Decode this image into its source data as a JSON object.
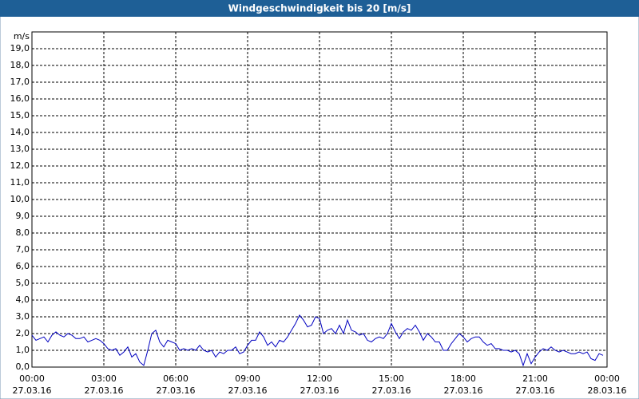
{
  "chart_data": {
    "type": "line",
    "title": "Windgeschwindigkeit bis 20 [m/s]",
    "y_label": "m/s",
    "x": [
      0,
      10,
      20,
      30,
      40,
      50,
      60,
      70,
      80,
      90,
      100,
      110,
      120,
      130,
      140,
      150,
      160,
      170,
      180,
      190,
      200,
      210,
      220,
      230,
      240,
      250,
      260,
      270,
      280,
      290,
      300,
      310,
      320,
      330,
      340,
      350,
      360,
      370,
      380,
      390,
      400,
      410,
      420,
      430,
      440,
      450,
      460,
      470,
      480,
      490,
      500,
      510,
      520,
      530,
      540,
      550,
      560,
      570,
      580,
      590,
      600,
      610,
      620,
      630,
      640,
      650,
      660,
      670,
      680,
      690,
      700,
      710,
      720,
      730,
      740,
      750,
      760,
      770,
      780,
      790,
      800,
      810,
      820,
      830,
      840,
      850,
      860,
      870,
      880,
      890,
      900,
      910,
      920,
      930,
      940,
      950,
      960,
      970,
      980,
      990,
      1000,
      1010,
      1020,
      1030,
      1040,
      1050,
      1060,
      1070,
      1080,
      1090,
      1100,
      1110,
      1120,
      1130,
      1140,
      1150,
      1160,
      1170,
      1180,
      1190,
      1200,
      1210,
      1220,
      1230,
      1240,
      1250,
      1260,
      1270,
      1280,
      1290,
      1300,
      1310,
      1320,
      1330,
      1340,
      1350,
      1360,
      1370,
      1380,
      1390,
      1400,
      1410,
      1420,
      1430
    ],
    "series": [
      {
        "name": "Windgeschwindigkeit",
        "color": "#0000c0",
        "values": [
          1.9,
          1.6,
          1.7,
          1.8,
          1.5,
          1.9,
          2.1,
          1.9,
          1.8,
          2.0,
          1.9,
          1.7,
          1.7,
          1.8,
          1.5,
          1.6,
          1.7,
          1.6,
          1.4,
          1.1,
          1.0,
          1.1,
          0.7,
          0.9,
          1.2,
          0.6,
          0.8,
          0.3,
          0.1,
          1.0,
          2.0,
          2.2,
          1.5,
          1.2,
          1.6,
          1.5,
          1.4,
          1.0,
          1.1,
          1.0,
          1.1,
          1.0,
          1.3,
          1.0,
          0.9,
          1.0,
          0.6,
          0.9,
          0.8,
          1.0,
          1.0,
          1.2,
          0.8,
          0.9,
          1.3,
          1.6,
          1.6,
          2.1,
          1.8,
          1.3,
          1.5,
          1.2,
          1.6,
          1.5,
          1.8,
          2.2,
          2.6,
          3.1,
          2.8,
          2.4,
          2.5,
          3.0,
          2.9,
          2.0,
          2.2,
          2.3,
          2.0,
          2.5,
          2.0,
          2.8,
          2.2,
          2.1,
          1.9,
          2.0,
          1.6,
          1.5,
          1.7,
          1.8,
          1.7,
          2.0,
          2.6,
          2.1,
          1.7,
          2.1,
          2.3,
          2.2,
          2.5,
          2.1,
          1.6,
          2.0,
          1.8,
          1.5,
          1.5,
          1.0,
          1.0,
          1.4,
          1.7,
          2.0,
          1.8,
          1.5,
          1.7,
          1.8,
          1.8,
          1.5,
          1.3,
          1.4,
          1.1,
          1.1,
          1.0,
          1.0,
          0.9,
          1.0,
          0.8,
          0.1,
          0.8,
          0.2,
          0.6,
          0.9,
          1.1,
          1.0,
          1.2,
          1.0,
          0.9,
          1.0,
          0.9,
          0.8,
          0.8,
          0.9,
          0.8,
          0.9,
          0.5,
          0.4,
          0.8,
          0.7
        ]
      }
    ],
    "xlim": [
      0,
      1440
    ],
    "xticks": [
      {
        "value": 0,
        "label": "00:00"
      },
      {
        "value": 180,
        "label": "03:00"
      },
      {
        "value": 360,
        "label": "06:00"
      },
      {
        "value": 540,
        "label": "09:00"
      },
      {
        "value": 720,
        "label": "12:00"
      },
      {
        "value": 900,
        "label": "15:00"
      },
      {
        "value": 1080,
        "label": "18:00"
      },
      {
        "value": 1260,
        "label": "21:00"
      },
      {
        "value": 1440,
        "label": "00:00"
      }
    ],
    "xtick_dates": [
      "27.03.16",
      "27.03.16",
      "27.03.16",
      "27.03.16",
      "27.03.16",
      "27.03.16",
      "27.03.16",
      "27.03.16",
      "28.03.16"
    ],
    "ylim": [
      0,
      20
    ],
    "yticks": [
      {
        "value": 0,
        "label": "0,0"
      },
      {
        "value": 1,
        "label": "1,0"
      },
      {
        "value": 2,
        "label": "2,0"
      },
      {
        "value": 3,
        "label": "3,0"
      },
      {
        "value": 4,
        "label": "4,0"
      },
      {
        "value": 5,
        "label": "5,0"
      },
      {
        "value": 6,
        "label": "6,0"
      },
      {
        "value": 7,
        "label": "7,0"
      },
      {
        "value": 8,
        "label": "8,0"
      },
      {
        "value": 9,
        "label": "9,0"
      },
      {
        "value": 10,
        "label": "10,0"
      },
      {
        "value": 11,
        "label": "11,0"
      },
      {
        "value": 12,
        "label": "12,0"
      },
      {
        "value": 13,
        "label": "13,0"
      },
      {
        "value": 14,
        "label": "14,0"
      },
      {
        "value": 15,
        "label": "15,0"
      },
      {
        "value": 16,
        "label": "16,0"
      },
      {
        "value": 17,
        "label": "17,0"
      },
      {
        "value": 18,
        "label": "18,0"
      },
      {
        "value": 19,
        "label": "19,0"
      }
    ],
    "grid": true
  }
}
